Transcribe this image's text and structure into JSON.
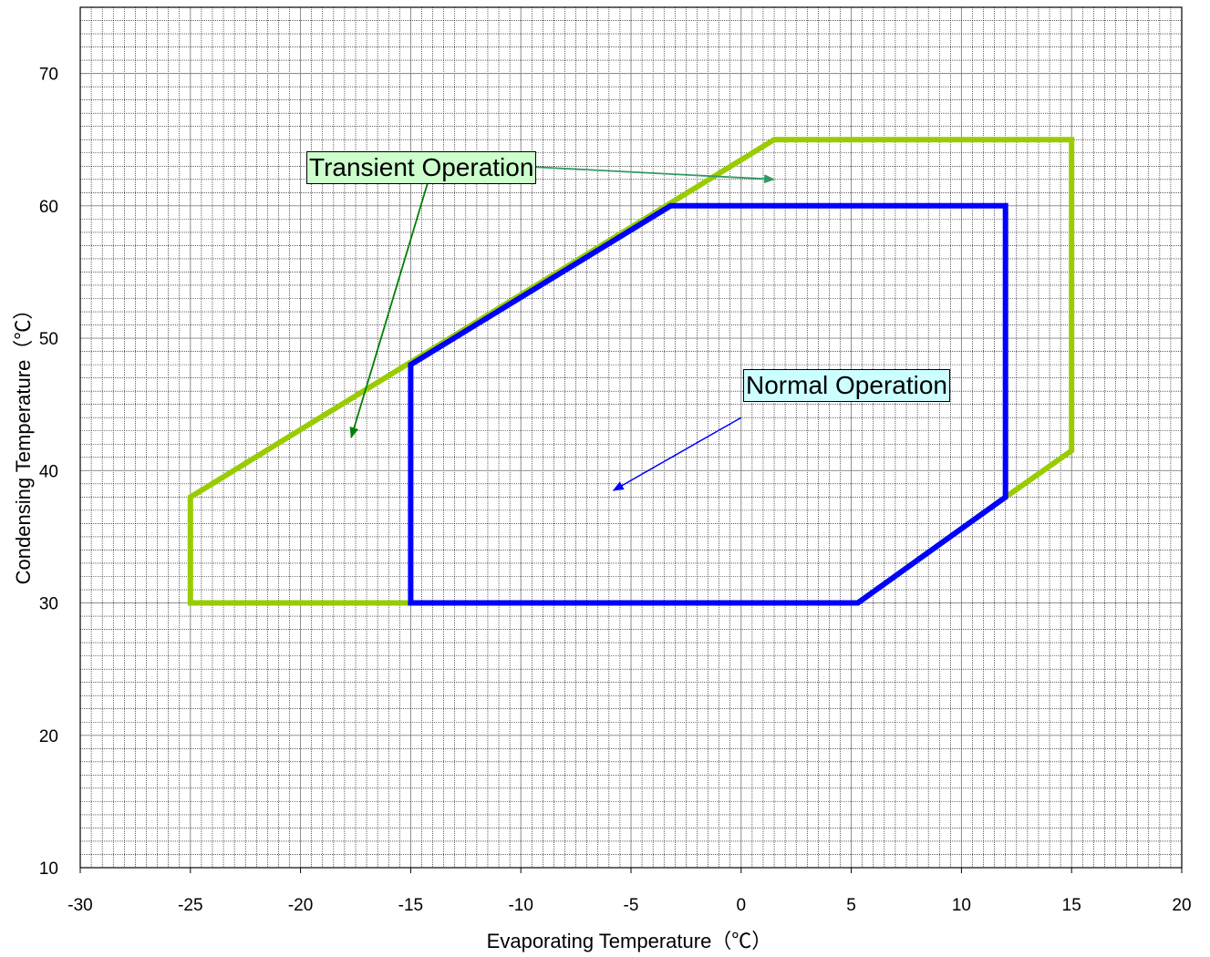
{
  "chart_data": {
    "type": "line",
    "title": "",
    "xlabel": "Evaporating Temperature（℃）",
    "ylabel": "Condensing Temperature（℃）",
    "xlim": [
      -30,
      20
    ],
    "ylim": [
      10,
      75
    ],
    "xticks": [
      -30,
      -25,
      -20,
      -15,
      -10,
      -5,
      0,
      5,
      10,
      15,
      20
    ],
    "yticks": [
      10,
      20,
      30,
      40,
      50,
      60,
      70
    ],
    "grid": true,
    "series": [
      {
        "name": "Transient Operation",
        "color": "#99cc00",
        "points": [
          [
            -25,
            30
          ],
          [
            -25,
            38
          ],
          [
            1.5,
            65
          ],
          [
            15,
            65
          ],
          [
            15,
            41.5
          ],
          [
            12,
            38
          ],
          [
            5.3,
            30
          ],
          [
            -25,
            30
          ]
        ]
      },
      {
        "name": "Normal Operation",
        "color": "#0000ff",
        "points": [
          [
            -15,
            30
          ],
          [
            -15,
            48
          ],
          [
            -3.2,
            60
          ],
          [
            12,
            60
          ],
          [
            12,
            38
          ],
          [
            5.3,
            30
          ],
          [
            -15,
            30
          ]
        ]
      }
    ],
    "annotations": [
      {
        "text": "Transient Operation",
        "color": "#ccffcc",
        "arrows": [
          [
            -16,
            63.5,
            1.5,
            62
          ],
          [
            -14,
            63,
            -17.7,
            42.5
          ]
        ]
      },
      {
        "text": "Normal Operation",
        "color": "#ccffff",
        "arrows": [
          [
            0,
            44,
            -5.8,
            38.5
          ]
        ]
      }
    ]
  }
}
